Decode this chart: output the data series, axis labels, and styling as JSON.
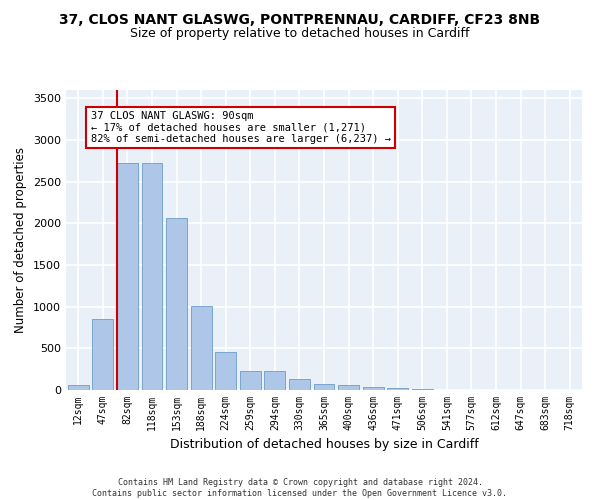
{
  "title_line1": "37, CLOS NANT GLASWG, PONTPRENNAU, CARDIFF, CF23 8NB",
  "title_line2": "Size of property relative to detached houses in Cardiff",
  "xlabel": "Distribution of detached houses by size in Cardiff",
  "ylabel": "Number of detached properties",
  "footer": "Contains HM Land Registry data © Crown copyright and database right 2024.\nContains public sector information licensed under the Open Government Licence v3.0.",
  "bin_labels": [
    "12sqm",
    "47sqm",
    "82sqm",
    "118sqm",
    "153sqm",
    "188sqm",
    "224sqm",
    "259sqm",
    "294sqm",
    "330sqm",
    "365sqm",
    "400sqm",
    "436sqm",
    "471sqm",
    "506sqm",
    "541sqm",
    "577sqm",
    "612sqm",
    "647sqm",
    "683sqm",
    "718sqm"
  ],
  "bar_values": [
    60,
    850,
    2730,
    2730,
    2060,
    1010,
    460,
    230,
    230,
    130,
    70,
    55,
    35,
    25,
    15,
    5,
    5,
    5,
    2,
    2,
    0
  ],
  "bar_color": "#aec6e8",
  "bar_edge_color": "#5a8fc0",
  "highlight_bar_index": 2,
  "highlight_color": "#cc0000",
  "annotation_text": "37 CLOS NANT GLASWG: 90sqm\n← 17% of detached houses are smaller (1,271)\n82% of semi-detached houses are larger (6,237) →",
  "ylim": [
    0,
    3600
  ],
  "yticks": [
    0,
    500,
    1000,
    1500,
    2000,
    2500,
    3000,
    3500
  ],
  "bg_color": "#eaf0f8",
  "grid_color": "#ffffff",
  "title1_fontsize": 10,
  "title2_fontsize": 9,
  "xlabel_fontsize": 9,
  "ylabel_fontsize": 8.5
}
